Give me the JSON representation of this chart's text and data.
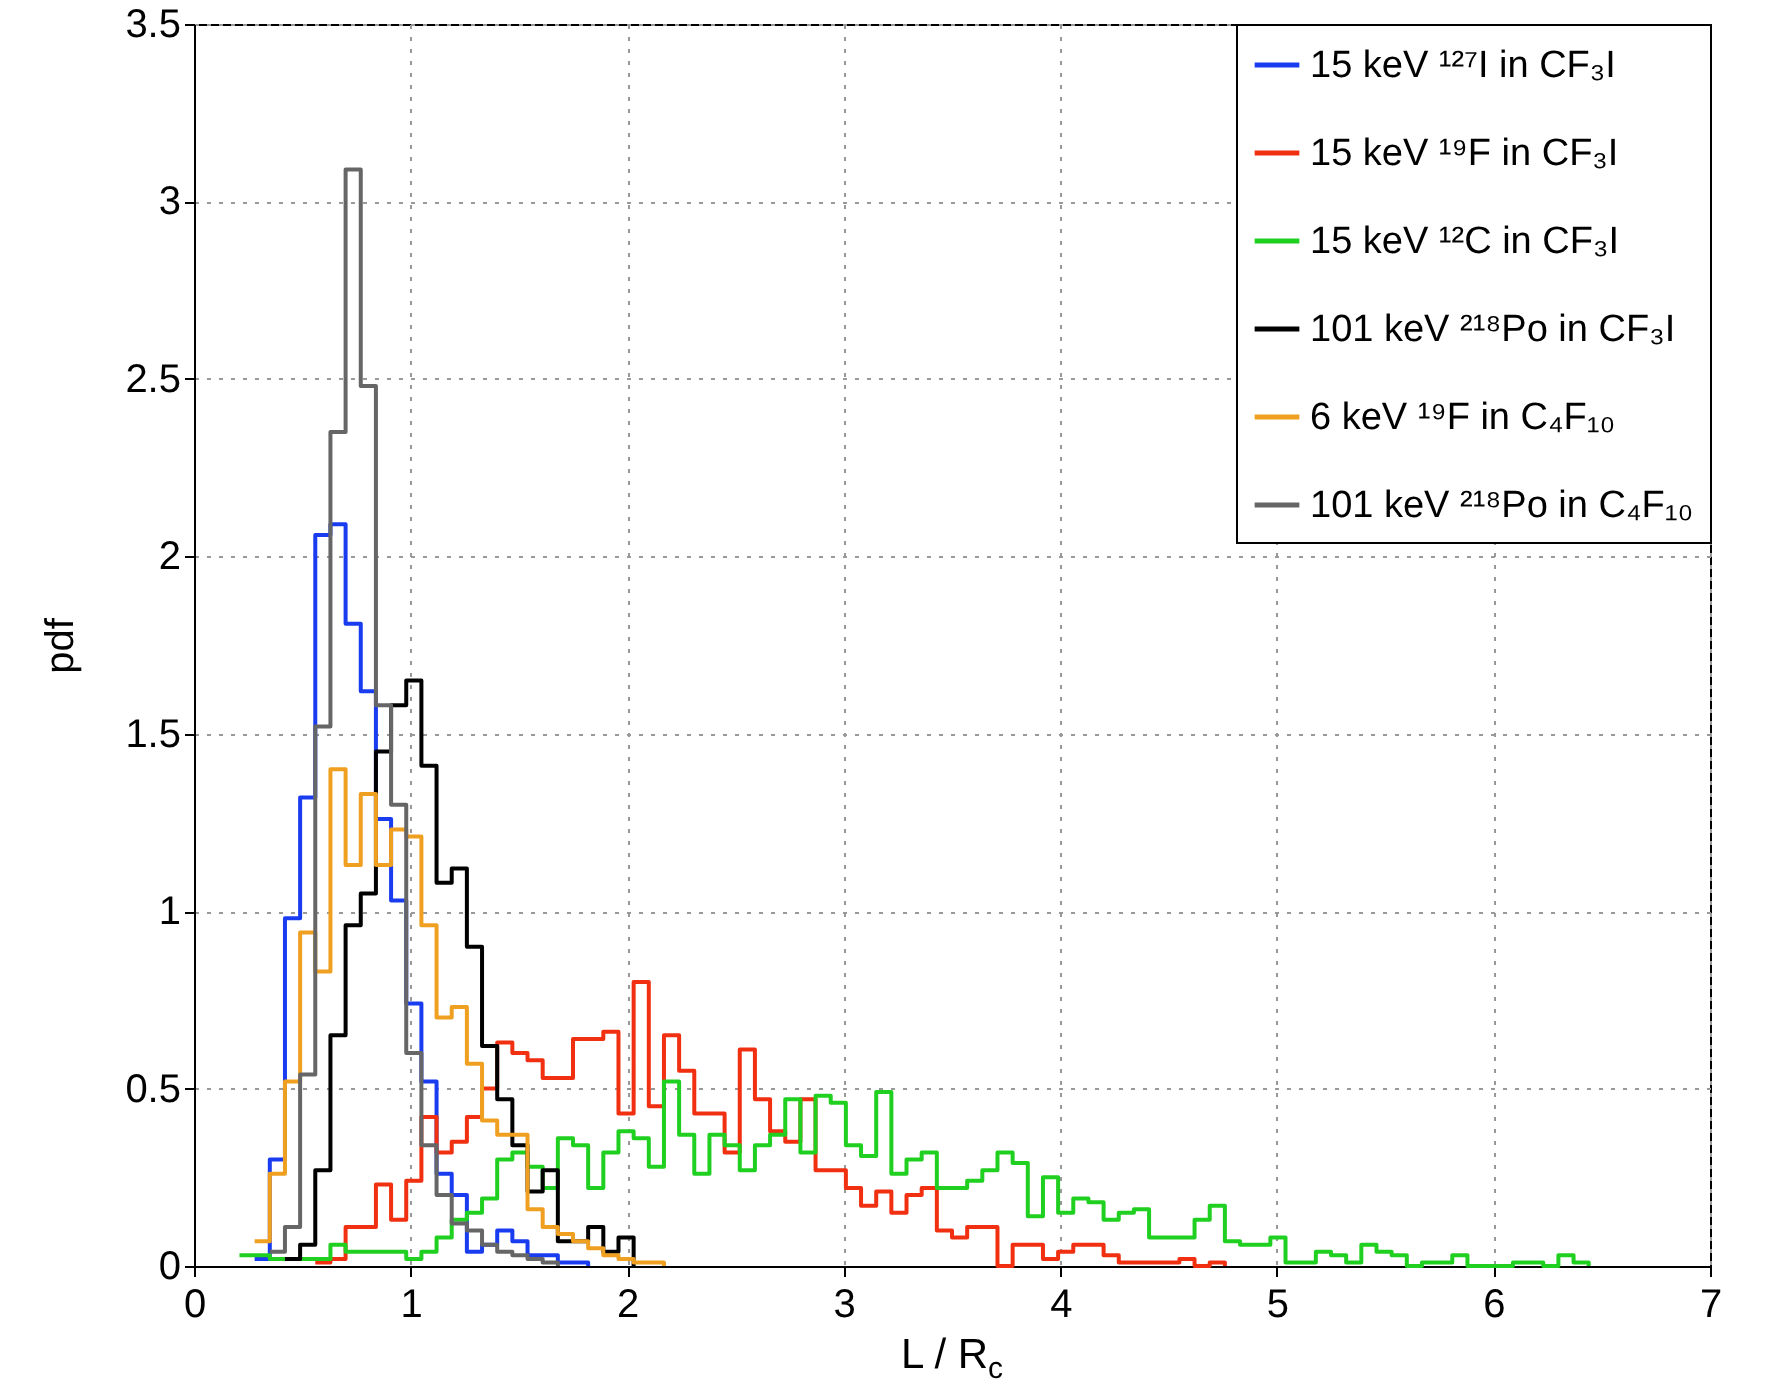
{
  "chart_data": {
    "type": "step",
    "xlabel": "L / R$_{c}$",
    "ylabel": "pdf",
    "x": [
      0.21,
      0.28,
      0.35,
      0.42,
      0.49,
      0.56,
      0.63,
      0.7,
      0.77,
      0.84,
      0.91,
      0.98,
      1.05,
      1.12,
      1.19,
      1.26,
      1.33,
      1.4,
      1.47,
      1.54,
      1.61,
      1.68,
      1.75,
      1.82,
      1.89,
      1.96,
      2.03,
      2.1,
      2.17,
      2.24,
      2.31,
      2.38,
      2.45,
      2.52,
      2.59,
      2.66,
      2.73,
      2.8,
      2.87,
      2.94,
      3.01,
      3.08,
      3.15,
      3.22,
      3.29,
      3.36,
      3.43,
      3.5,
      3.57,
      3.64,
      3.71,
      3.78,
      3.85,
      3.92,
      3.99,
      4.06,
      4.13,
      4.2,
      4.27,
      4.34,
      4.41,
      4.48,
      4.55,
      4.62,
      4.69,
      4.76,
      4.83,
      4.9,
      4.97,
      5.04,
      5.11,
      5.18,
      5.25,
      5.32,
      5.39,
      5.46,
      5.53,
      5.6,
      5.67,
      5.74,
      5.81,
      5.88,
      5.95,
      6.02,
      6.09,
      6.16,
      6.23,
      6.3,
      6.37,
      6.44
    ],
    "series": [
      {
        "name": "15 keV ¹²⁷I in CF₃I",
        "color": "#1a3cf0",
        "values": [
          null,
          0.02,
          0.3,
          0.98,
          1.32,
          2.06,
          2.09,
          1.81,
          1.62,
          1.26,
          1.03,
          0.74,
          0.52,
          0.26,
          0.2,
          0.04,
          0.06,
          0.1,
          0.07,
          0.03,
          0.03,
          0.01,
          0.01,
          0,
          null,
          null,
          null,
          null,
          null,
          null,
          null,
          null,
          null,
          null,
          null,
          null,
          null,
          null,
          null,
          null,
          null,
          null,
          null,
          null,
          null,
          null,
          null,
          null,
          null,
          null,
          null,
          null,
          null,
          null,
          null,
          null,
          null,
          null,
          null,
          null,
          null,
          null,
          null,
          null,
          null,
          null,
          null,
          null,
          null,
          null,
          null,
          null,
          null,
          null,
          null,
          null,
          null,
          null,
          null,
          null,
          null,
          null,
          null,
          null,
          null,
          null,
          null,
          null,
          null,
          null
        ]
      },
      {
        "name": "15 keV ¹⁹F in CF₃I",
        "color": "#f03010",
        "values": [
          null,
          null,
          null,
          null,
          null,
          0.01,
          0.02,
          0.11,
          0.11,
          0.23,
          0.13,
          0.24,
          0.42,
          0.32,
          0.35,
          0.42,
          0.5,
          0.63,
          0.6,
          0.58,
          0.53,
          0.53,
          0.64,
          0.64,
          0.66,
          0.43,
          0.8,
          0.45,
          0.65,
          0.55,
          0.43,
          0.43,
          0.32,
          0.61,
          0.47,
          0.38,
          0.35,
          0.47,
          0.27,
          0.27,
          0.22,
          0.17,
          0.21,
          0.15,
          0.2,
          0.22,
          0.1,
          0.08,
          0.11,
          0.11,
          0,
          0.06,
          0.06,
          0.02,
          0.04,
          0.06,
          0.06,
          0.03,
          0.01,
          0.01,
          0.01,
          0.01,
          0.02,
          0,
          0.01,
          0,
          null,
          null,
          null,
          null,
          null,
          null,
          null,
          null,
          null,
          null,
          null,
          null,
          null,
          null,
          null,
          null,
          null,
          null,
          null,
          null,
          null,
          null,
          null,
          null
        ]
      },
      {
        "name": "15 keV ¹²C in CF₃I",
        "color": "#20d020",
        "values": [
          0.03,
          0.03,
          0.02,
          0.02,
          0.02,
          0.02,
          0.06,
          0.04,
          0.04,
          0.04,
          0.04,
          0.02,
          0.04,
          0.08,
          0.13,
          0.15,
          0.19,
          0.3,
          0.32,
          0.28,
          0.22,
          0.36,
          0.34,
          0.22,
          0.32,
          0.38,
          0.36,
          0.28,
          0.52,
          0.37,
          0.26,
          0.37,
          0.34,
          0.27,
          0.34,
          0.37,
          0.47,
          0.32,
          0.48,
          0.46,
          0.34,
          0.31,
          0.49,
          0.26,
          0.3,
          0.32,
          0.22,
          0.22,
          0.24,
          0.27,
          0.32,
          0.29,
          0.14,
          0.25,
          0.15,
          0.19,
          0.18,
          0.13,
          0.15,
          0.16,
          0.08,
          0.08,
          0.08,
          0.13,
          0.17,
          0.07,
          0.06,
          0.06,
          0.08,
          0.01,
          0.01,
          0.04,
          0.03,
          0.01,
          0.06,
          0.04,
          0.03,
          0,
          0.01,
          0.01,
          0.03,
          0,
          0,
          0,
          0.01,
          0.01,
          0,
          0.03,
          0.01,
          0
        ]
      },
      {
        "name": "101 keV ²¹⁸Po in CF₃I",
        "color": "#000000",
        "values": [
          null,
          null,
          null,
          0.02,
          0.06,
          0.27,
          0.65,
          0.96,
          1.05,
          1.45,
          1.58,
          1.65,
          1.41,
          1.08,
          1.12,
          0.9,
          0.62,
          0.47,
          0.34,
          0.21,
          0.27,
          0.07,
          0.07,
          0.11,
          0.04,
          0.08,
          0,
          null,
          null,
          null,
          null,
          null,
          null,
          null,
          null,
          null,
          null,
          null,
          null,
          null,
          null,
          null,
          null,
          null,
          null,
          null,
          null,
          null,
          null,
          null,
          null,
          null,
          null,
          null,
          null,
          null,
          null,
          null,
          null,
          null,
          null,
          null,
          null,
          null,
          null,
          null,
          null,
          null,
          null,
          null,
          null,
          null,
          null,
          null,
          null,
          null,
          null,
          null,
          null,
          null,
          null,
          null,
          null,
          null,
          null,
          null,
          null,
          null,
          null,
          null
        ]
      },
      {
        "name": "6 keV ¹⁹F in C₄F₁₀",
        "color": "#f0a020",
        "values": [
          null,
          0.07,
          0.26,
          0.52,
          0.94,
          0.83,
          1.4,
          1.13,
          1.33,
          1.13,
          1.23,
          1.21,
          0.96,
          0.7,
          0.73,
          0.57,
          0.41,
          0.37,
          0.37,
          0.16,
          0.11,
          0.09,
          0.07,
          0.05,
          0.03,
          0.02,
          0.01,
          0.01,
          0,
          null,
          null,
          null,
          null,
          null,
          null,
          null,
          null,
          null,
          null,
          null,
          null,
          null,
          null,
          null,
          null,
          null,
          null,
          null,
          null,
          null,
          null,
          null,
          null,
          null,
          null,
          null,
          null,
          null,
          null,
          null,
          null,
          null,
          null,
          null,
          null,
          null,
          null,
          null,
          null,
          null,
          null,
          null,
          null,
          null,
          null,
          null,
          null,
          null,
          null,
          null,
          null,
          null,
          null,
          null,
          null,
          null,
          null,
          null,
          null,
          null
        ]
      },
      {
        "name": "101 keV ²¹⁸Po in C₄F₁₀",
        "color": "#666666",
        "values": [
          null,
          null,
          0.04,
          0.11,
          0.54,
          1.52,
          2.35,
          3.09,
          2.48,
          1.58,
          1.3,
          0.6,
          0.34,
          0.2,
          0.12,
          0.1,
          0.06,
          0.04,
          0.03,
          0.02,
          0.01,
          0,
          null,
          null,
          null,
          null,
          null,
          null,
          null,
          null,
          null,
          null,
          null,
          null,
          null,
          null,
          null,
          null,
          null,
          null,
          null,
          null,
          null,
          null,
          null,
          null,
          null,
          null,
          null,
          null,
          null,
          null,
          null,
          null,
          null,
          null,
          null,
          null,
          null,
          null,
          null,
          null,
          null,
          null,
          null,
          null,
          null,
          null,
          null,
          null,
          null,
          null,
          null,
          null,
          null,
          null,
          null,
          null,
          null,
          null,
          null,
          null,
          null,
          null,
          null,
          null,
          null,
          null,
          null,
          null
        ]
      }
    ],
    "xlim": [
      0,
      7
    ],
    "xticks": [
      0,
      1,
      2,
      3,
      4,
      5,
      6,
      7
    ],
    "ylim": [
      0,
      3.5
    ],
    "yticks": [
      0,
      0.5,
      1,
      1.5,
      2,
      2.5,
      3,
      3.5
    ],
    "grid": true,
    "legend": "top right"
  }
}
